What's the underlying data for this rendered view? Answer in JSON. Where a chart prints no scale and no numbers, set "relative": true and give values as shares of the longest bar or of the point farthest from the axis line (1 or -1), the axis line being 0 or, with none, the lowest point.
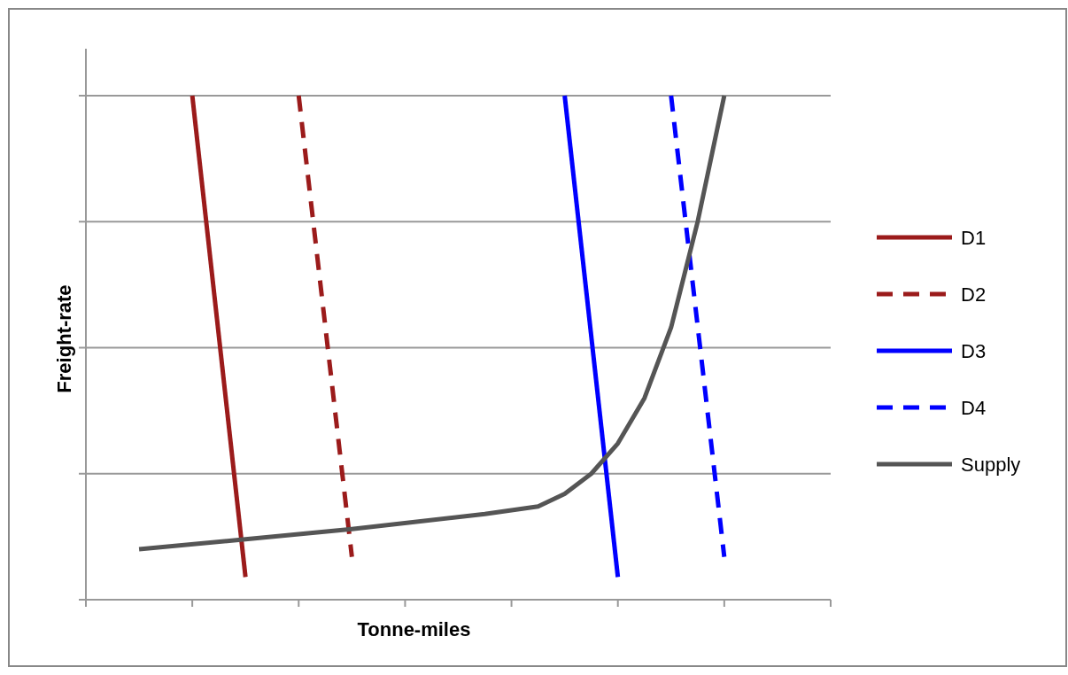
{
  "chart_data": {
    "type": "line",
    "xlabel": "Tonne-miles",
    "ylabel": "Freight-rate",
    "relative": true,
    "categories": [
      null,
      null,
      null,
      null,
      null,
      null,
      null,
      null,
      null,
      null,
      null,
      null,
      null,
      null,
      null,
      null,
      null,
      null,
      null,
      null,
      null,
      null,
      null,
      null,
      null,
      null,
      null,
      null,
      null
    ],
    "grid": "y",
    "legend": "right",
    "series": [
      {
        "name": "D1",
        "color": "#9b1b1b",
        "line_style": "solid",
        "values": [
          null,
          null,
          null,
          null,
          1,
          null,
          0.045,
          null,
          null,
          null,
          null,
          null,
          null,
          null,
          null,
          null,
          null,
          null,
          null,
          null,
          null,
          null,
          null,
          null,
          null,
          null,
          null,
          null,
          null
        ]
      },
      {
        "name": "D2",
        "color": "#9b1b1b",
        "line_style": "dashed",
        "values": [
          null,
          null,
          null,
          null,
          null,
          null,
          null,
          null,
          1,
          null,
          0.085,
          null,
          null,
          null,
          null,
          null,
          null,
          null,
          null,
          null,
          null,
          null,
          null,
          null,
          null,
          null,
          null,
          null,
          null
        ]
      },
      {
        "name": "D3",
        "color": "#0000ff",
        "line_style": "solid",
        "values": [
          null,
          null,
          null,
          null,
          null,
          null,
          null,
          null,
          null,
          null,
          null,
          null,
          null,
          null,
          null,
          null,
          null,
          null,
          1,
          null,
          0.045,
          null,
          null,
          null,
          null,
          null,
          null,
          null,
          null
        ]
      },
      {
        "name": "D4",
        "color": "#0000ff",
        "line_style": "dashed",
        "values": [
          null,
          null,
          null,
          null,
          null,
          null,
          null,
          null,
          null,
          null,
          null,
          null,
          null,
          null,
          null,
          null,
          null,
          null,
          null,
          null,
          null,
          null,
          1,
          null,
          0.085,
          null,
          null,
          null,
          null
        ]
      },
      {
        "name": "Supply",
        "color": "#555555",
        "line_style": "solid",
        "values": [
          null,
          null,
          0.1,
          null,
          null,
          null,
          0.12,
          null,
          null,
          null,
          0.14,
          null,
          null,
          null,
          null,
          0.17,
          null,
          0.185,
          0.21,
          0.25,
          0.31,
          0.4,
          0.54,
          0.75,
          1,
          null,
          null,
          null,
          null
        ]
      }
    ]
  }
}
